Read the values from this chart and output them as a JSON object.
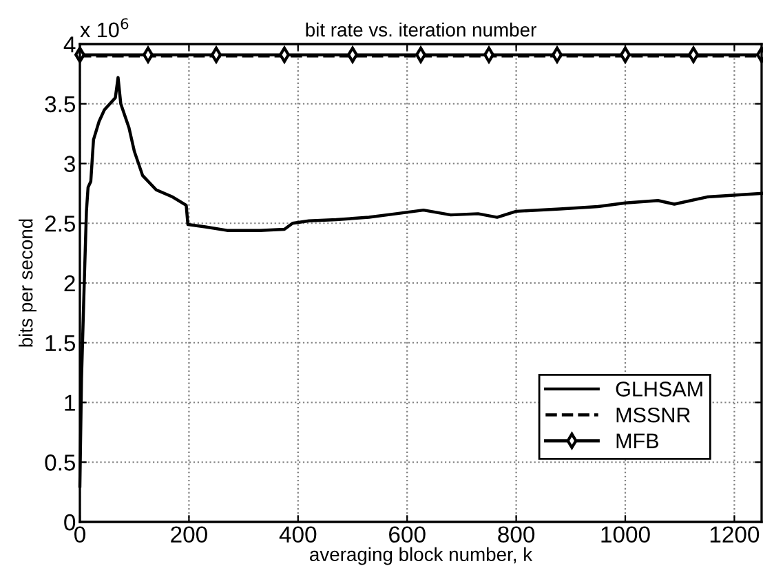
{
  "chart_data": {
    "type": "line",
    "title": "bit rate vs. iteration number",
    "xlabel": "averaging block number, k",
    "ylabel": "bits per second",
    "annotations": [
      "x 10$^{6}$"
    ],
    "xlim": [
      0,
      1250
    ],
    "xticks": [
      0,
      200,
      400,
      600,
      800,
      1000,
      1200
    ],
    "ylim": [
      0,
      4
    ],
    "yticks": [
      0,
      0.5,
      1,
      1.5,
      2,
      2.5,
      3,
      3.5,
      4
    ],
    "grid": true,
    "legend": "bottom right",
    "series": [
      {
        "name": "GLHSAM",
        "color": "#000000",
        "line_style": "solid",
        "marker": "none",
        "x": [
          0,
          3,
          8,
          12,
          15,
          20,
          25,
          35,
          45,
          55,
          65,
          70,
          75,
          90,
          100,
          115,
          140,
          170,
          195,
          198,
          230,
          270,
          330,
          375,
          390,
          420,
          470,
          530,
          580,
          630,
          680,
          730,
          765,
          800,
          880,
          950,
          1000,
          1060,
          1090,
          1150,
          1250
        ],
        "values": [
          0.3,
          1.2,
          2.0,
          2.6,
          2.8,
          2.85,
          3.2,
          3.35,
          3.45,
          3.5,
          3.55,
          3.72,
          3.5,
          3.3,
          3.1,
          2.9,
          2.78,
          2.72,
          2.65,
          2.49,
          2.47,
          2.44,
          2.44,
          2.45,
          2.5,
          2.52,
          2.53,
          2.55,
          2.58,
          2.61,
          2.57,
          2.58,
          2.55,
          2.6,
          2.62,
          2.64,
          2.67,
          2.69,
          2.66,
          2.72,
          2.75
        ]
      },
      {
        "name": "MSSNR",
        "color": "#000000",
        "line_style": "dashed",
        "marker": "none",
        "x": [
          0,
          1250
        ],
        "values": [
          3.9,
          3.9
        ]
      },
      {
        "name": "MFB",
        "color": "#000000",
        "line_style": "solid",
        "marker": "diamond",
        "x": [
          0,
          125,
          250,
          375,
          500,
          625,
          750,
          875,
          1000,
          1125,
          1250
        ],
        "values": [
          3.91,
          3.91,
          3.91,
          3.91,
          3.91,
          3.91,
          3.91,
          3.91,
          3.91,
          3.91,
          3.91
        ]
      }
    ]
  }
}
